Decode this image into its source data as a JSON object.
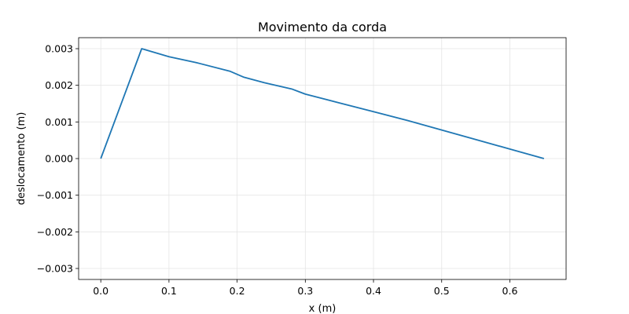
{
  "chart_data": {
    "type": "line",
    "title": "Movimento da corda",
    "xlabel": "x (m)",
    "ylabel": "deslocamento (m)",
    "xlim": [
      -0.0325,
      0.6825
    ],
    "ylim": [
      -0.0033,
      0.0033
    ],
    "xticks": [
      0.0,
      0.1,
      0.2,
      0.3,
      0.4,
      0.5,
      0.6
    ],
    "xtick_labels": [
      "0.0",
      "0.1",
      "0.2",
      "0.3",
      "0.4",
      "0.5",
      "0.6"
    ],
    "yticks": [
      0.003,
      0.002,
      0.001,
      0.0,
      -0.001,
      -0.002,
      -0.003
    ],
    "ytick_labels": [
      "0.003",
      "0.002",
      "0.001",
      "0.000",
      "−0.001",
      "−0.002",
      "−0.003"
    ],
    "grid": true,
    "series": [
      {
        "color": "#1f77b4",
        "x": [
          0.0,
          0.06,
          0.1,
          0.14,
          0.19,
          0.21,
          0.24,
          0.28,
          0.3,
          0.35,
          0.4,
          0.45,
          0.5,
          0.55,
          0.6,
          0.65
        ],
        "y": [
          0.0,
          0.003,
          0.00278,
          0.00262,
          0.00238,
          0.00222,
          0.00207,
          0.0019,
          0.00176,
          0.00152,
          0.00128,
          0.00104,
          0.00078,
          0.00052,
          0.00026,
          0.0
        ]
      }
    ]
  }
}
